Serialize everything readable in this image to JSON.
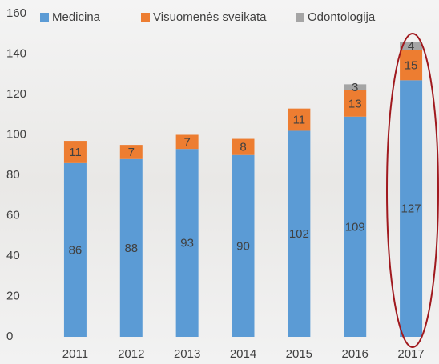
{
  "chart_data": {
    "type": "stacked-bar",
    "categories": [
      "2011",
      "2012",
      "2013",
      "2014",
      "2015",
      "2016",
      "2017"
    ],
    "series": [
      {
        "name": "Medicina",
        "color": "#5b9bd5",
        "values": [
          86,
          88,
          93,
          90,
          102,
          109,
          127
        ]
      },
      {
        "name": "Visuomenės sveikata",
        "color": "#ed7d31",
        "values": [
          11,
          7,
          7,
          8,
          11,
          13,
          15
        ]
      },
      {
        "name": "Odontologija",
        "color": "#a5a5a5",
        "values": [
          null,
          null,
          null,
          null,
          null,
          3,
          4
        ]
      }
    ],
    "ylim": [
      0,
      160
    ],
    "yticks": [
      0,
      20,
      40,
      60,
      80,
      100,
      120,
      140,
      160
    ],
    "grid": false,
    "legend": "top"
  }
}
